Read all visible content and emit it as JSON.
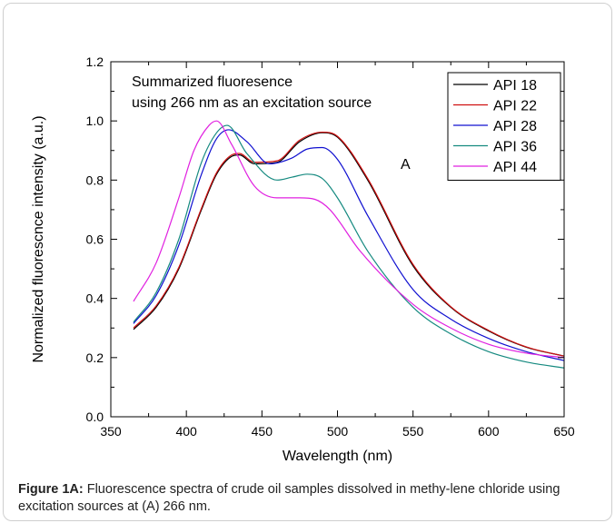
{
  "chart_data": {
    "type": "line",
    "title": "",
    "xlabel": "Wavelength (nm)",
    "ylabel": "Normalized fluorescnce intensity (a.u.)",
    "xlim": [
      350,
      650
    ],
    "ylim": [
      0.0,
      1.2
    ],
    "xticks": [
      350,
      400,
      450,
      500,
      550,
      600,
      650
    ],
    "xtick_labels": [
      "350",
      "400",
      "450",
      "500",
      "550",
      "600",
      "650"
    ],
    "yticks": [
      0.0,
      0.2,
      0.4,
      0.6,
      0.8,
      1.0,
      1.2
    ],
    "ytick_labels": [
      "0.0",
      "0.2",
      "0.4",
      "0.6",
      "0.8",
      "1.0",
      "1.2"
    ],
    "grid": false,
    "legend_position": "top-right",
    "annotations": {
      "summary_line1": "Summarized fluoresence",
      "summary_line2": "using 266 nm as an excitation source",
      "panel_letter": "A"
    },
    "series": [
      {
        "name": "API 18",
        "color": "#000000",
        "x": [
          365,
          380,
          395,
          410,
          420,
          430,
          435,
          445,
          460,
          475,
          490,
          500,
          520,
          550,
          575,
          600,
          625,
          650
        ],
        "y": [
          0.295,
          0.37,
          0.5,
          0.7,
          0.82,
          0.88,
          0.885,
          0.855,
          0.86,
          0.93,
          0.96,
          0.945,
          0.8,
          0.51,
          0.37,
          0.29,
          0.235,
          0.205
        ]
      },
      {
        "name": "API 22",
        "color": "#d01010",
        "x": [
          365,
          380,
          395,
          410,
          420,
          430,
          435,
          445,
          460,
          475,
          490,
          500,
          520,
          550,
          575,
          600,
          625,
          650
        ],
        "y": [
          0.3,
          0.375,
          0.505,
          0.705,
          0.825,
          0.885,
          0.89,
          0.86,
          0.865,
          0.935,
          0.962,
          0.948,
          0.805,
          0.515,
          0.372,
          0.292,
          0.236,
          0.205
        ]
      },
      {
        "name": "API 28",
        "color": "#1010d0",
        "x": [
          365,
          380,
          395,
          410,
          420,
          428,
          440,
          455,
          470,
          480,
          490,
          500,
          520,
          550,
          575,
          600,
          625,
          650
        ],
        "y": [
          0.315,
          0.41,
          0.58,
          0.82,
          0.94,
          0.97,
          0.93,
          0.855,
          0.875,
          0.905,
          0.91,
          0.87,
          0.68,
          0.43,
          0.33,
          0.265,
          0.22,
          0.19
        ]
      },
      {
        "name": "API 36",
        "color": "#168a80",
        "x": [
          365,
          380,
          395,
          410,
          420,
          427,
          440,
          460,
          470,
          480,
          490,
          500,
          520,
          550,
          575,
          600,
          625,
          650
        ],
        "y": [
          0.32,
          0.42,
          0.6,
          0.86,
          0.96,
          0.985,
          0.89,
          0.8,
          0.81,
          0.82,
          0.805,
          0.74,
          0.56,
          0.37,
          0.28,
          0.22,
          0.185,
          0.165
        ]
      },
      {
        "name": "API 44",
        "color": "#e020e0",
        "x": [
          365,
          380,
          395,
          405,
          415,
          420,
          430,
          445,
          460,
          475,
          485,
          495,
          515,
          550,
          575,
          600,
          625,
          650
        ],
        "y": [
          0.39,
          0.52,
          0.74,
          0.9,
          0.985,
          1.0,
          0.92,
          0.78,
          0.74,
          0.74,
          0.735,
          0.7,
          0.56,
          0.38,
          0.3,
          0.245,
          0.215,
          0.2
        ]
      }
    ]
  },
  "caption": {
    "label": "Figure 1A:",
    "text": " Fluorescence spectra of crude oil samples dissolved in methy-lene chloride using excitation sources at (A) 266 nm."
  }
}
